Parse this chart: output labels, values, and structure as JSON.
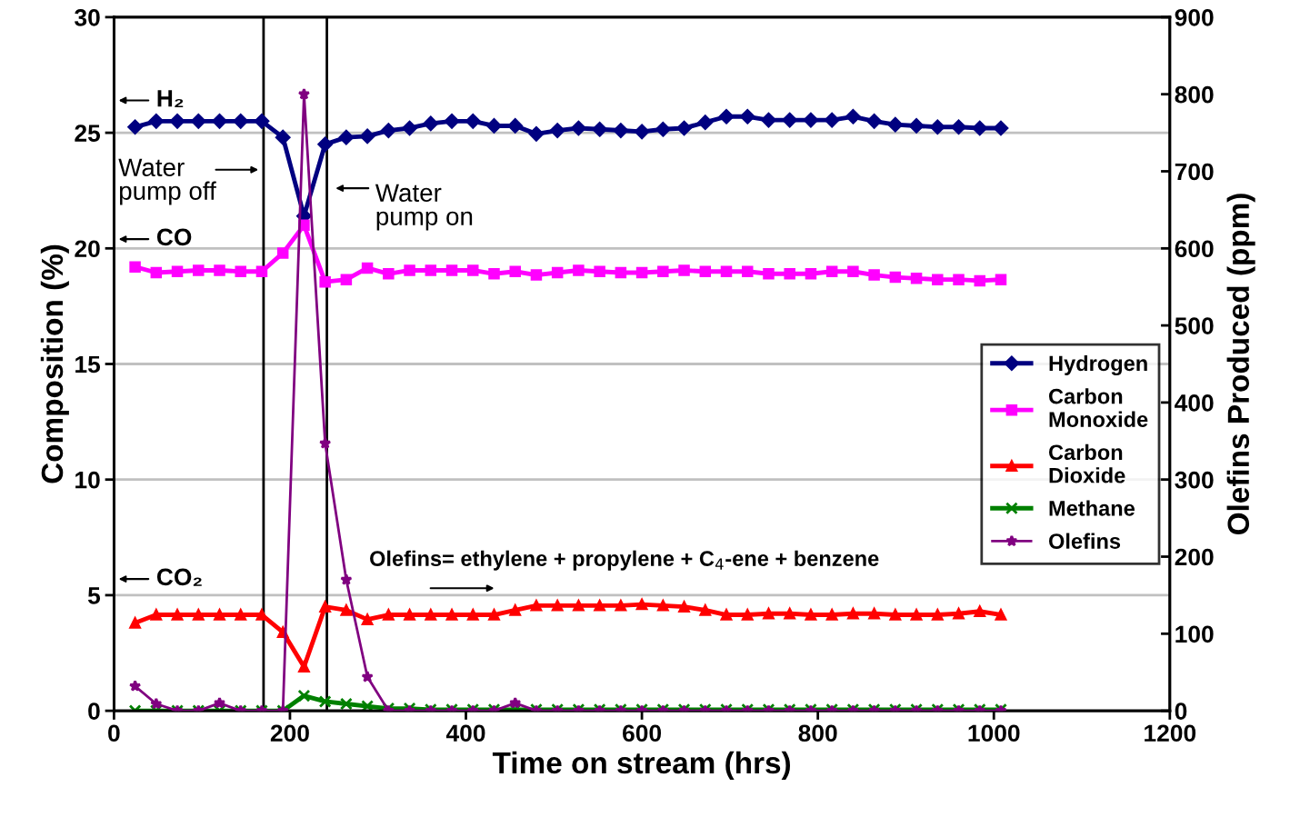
{
  "chart_data": {
    "type": "line",
    "xlabel": "Time on stream (hrs)",
    "ylabel": "Composition (%)",
    "y2label": "Olefins Produced (ppm)",
    "x": [
      24,
      48,
      72,
      96,
      120,
      144,
      168,
      192,
      216,
      240,
      264,
      288,
      312,
      336,
      360,
      384,
      408,
      432,
      456,
      480,
      504,
      528,
      552,
      576,
      600,
      624,
      648,
      672,
      696,
      720,
      744,
      768,
      792,
      816,
      840,
      864,
      888,
      912,
      936,
      960,
      984,
      1008
    ],
    "xlim": [
      0,
      1200
    ],
    "xticks": [
      0,
      200,
      400,
      600,
      800,
      1000,
      1200
    ],
    "ylim": [
      0,
      30
    ],
    "yticks": [
      0,
      5,
      10,
      15,
      20,
      25,
      30
    ],
    "y2lim": [
      0,
      900
    ],
    "y2ticks": [
      0,
      100,
      200,
      300,
      400,
      500,
      600,
      700,
      800,
      900
    ],
    "grid": "y",
    "legend": "right",
    "series": [
      {
        "name": "Hydrogen",
        "color": "#000080",
        "marker": "diamond",
        "values": [
          25.25,
          25.5,
          25.5,
          25.5,
          25.5,
          25.5,
          25.5,
          24.8,
          21.4,
          24.5,
          24.8,
          24.85,
          25.1,
          25.2,
          25.4,
          25.5,
          25.5,
          25.3,
          25.3,
          24.95,
          25.1,
          25.2,
          25.15,
          25.1,
          25.05,
          25.15,
          25.2,
          25.45,
          25.7,
          25.7,
          25.55,
          25.55,
          25.55,
          25.55,
          25.7,
          25.5,
          25.35,
          25.3,
          25.25,
          25.25,
          25.2,
          25.2
        ]
      },
      {
        "name": "Carbon Monoxide",
        "color": "#ff00ff",
        "marker": "square",
        "values": [
          19.2,
          18.95,
          19.0,
          19.05,
          19.05,
          19.0,
          19.0,
          19.8,
          21.0,
          18.55,
          18.65,
          19.15,
          18.9,
          19.05,
          19.05,
          19.05,
          19.05,
          18.9,
          19.0,
          18.85,
          18.95,
          19.05,
          19.0,
          18.95,
          18.95,
          19.0,
          19.05,
          19.0,
          19.0,
          19.0,
          18.9,
          18.9,
          18.9,
          19.0,
          19.0,
          18.85,
          18.75,
          18.7,
          18.65,
          18.65,
          18.6,
          18.65
        ]
      },
      {
        "name": "Carbon Dioxide",
        "color": "#ff0000",
        "marker": "triangle",
        "values": [
          3.8,
          4.15,
          4.15,
          4.15,
          4.15,
          4.15,
          4.15,
          3.4,
          1.9,
          4.5,
          4.35,
          3.95,
          4.15,
          4.15,
          4.15,
          4.15,
          4.15,
          4.15,
          4.35,
          4.55,
          4.55,
          4.55,
          4.55,
          4.55,
          4.6,
          4.55,
          4.5,
          4.35,
          4.15,
          4.15,
          4.2,
          4.2,
          4.15,
          4.15,
          4.2,
          4.2,
          4.15,
          4.15,
          4.15,
          4.2,
          4.3,
          4.15
        ]
      },
      {
        "name": "Methane",
        "color": "#008000",
        "marker": "cross",
        "values": [
          0,
          0,
          0,
          0,
          0,
          0,
          0,
          0,
          0.65,
          0.4,
          0.3,
          0.2,
          0.1,
          0.1,
          0.05,
          0.05,
          0.05,
          0.05,
          0.05,
          0.05,
          0.05,
          0.05,
          0.05,
          0.05,
          0.05,
          0.05,
          0.05,
          0.05,
          0.05,
          0.05,
          0.05,
          0.05,
          0.05,
          0.05,
          0.05,
          0.05,
          0.05,
          0.05,
          0.05,
          0.05,
          0.05,
          0.05
        ]
      },
      {
        "name": "Olefins",
        "color": "#800080",
        "marker": "star",
        "axis": "y2",
        "values": [
          32,
          9,
          0,
          0,
          10,
          0,
          0,
          0,
          800,
          347,
          170,
          44,
          0,
          0,
          0,
          0,
          0,
          0,
          10,
          0,
          0,
          0,
          0,
          0,
          0,
          0,
          0,
          0,
          0,
          0,
          0,
          0,
          0,
          0,
          0,
          0,
          0,
          0,
          0,
          0,
          0,
          0
        ]
      }
    ],
    "ref_lines": [
      {
        "axis": "x",
        "value": 170,
        "label": "Water pump off",
        "color": "#000000"
      },
      {
        "axis": "x",
        "value": 242,
        "label": "Water pump on",
        "color": "#000000"
      }
    ],
    "annotations": [
      "H₂",
      "CO",
      "CO₂",
      "Olefins= ethylene + propylene + C$_{4}$-ene + benzene"
    ]
  }
}
